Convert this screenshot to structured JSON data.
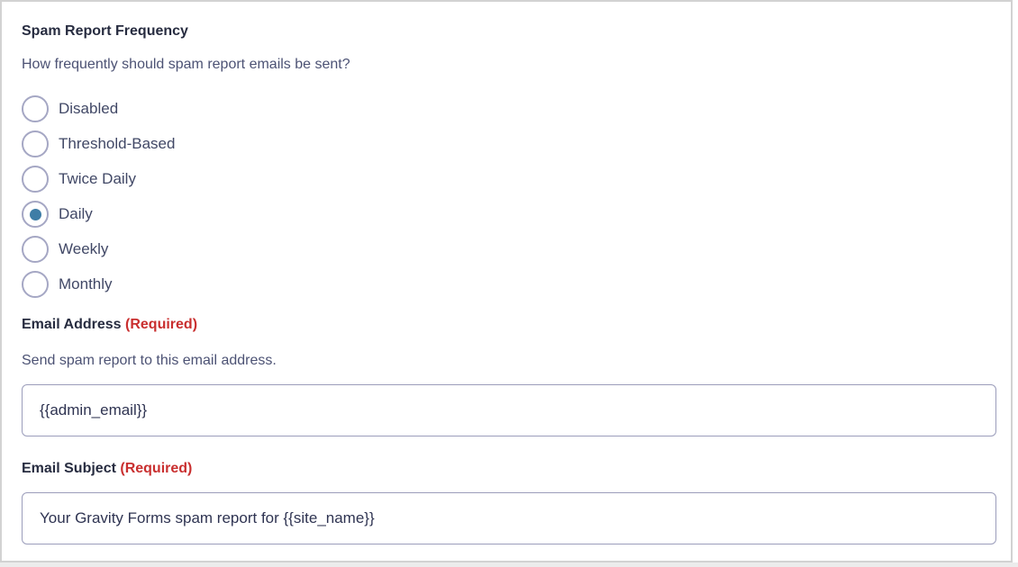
{
  "frequency_field": {
    "label": "Spam Report Frequency",
    "description": "How frequently should spam report emails be sent?",
    "options": [
      {
        "label": "Disabled",
        "selected": false
      },
      {
        "label": "Threshold-Based",
        "selected": false
      },
      {
        "label": "Twice Daily",
        "selected": false
      },
      {
        "label": "Daily",
        "selected": true
      },
      {
        "label": "Weekly",
        "selected": false
      },
      {
        "label": "Monthly",
        "selected": false
      }
    ]
  },
  "email_address_field": {
    "label": "Email Address",
    "required_label": "(Required)",
    "description": "Send spam report to this email address.",
    "value": "{{admin_email}}"
  },
  "email_subject_field": {
    "label": "Email Subject",
    "required_label": "(Required)",
    "value": "Your Gravity Forms spam report for {{site_name}}"
  },
  "colors": {
    "label_text": "#272c40",
    "body_text": "#4c5274",
    "option_text": "#414866",
    "required_red": "#c92f2f",
    "radio_border": "#a5a7c4",
    "radio_selected": "#3e7da6",
    "input_border": "#9b9dbb",
    "input_text": "#2f3452"
  }
}
